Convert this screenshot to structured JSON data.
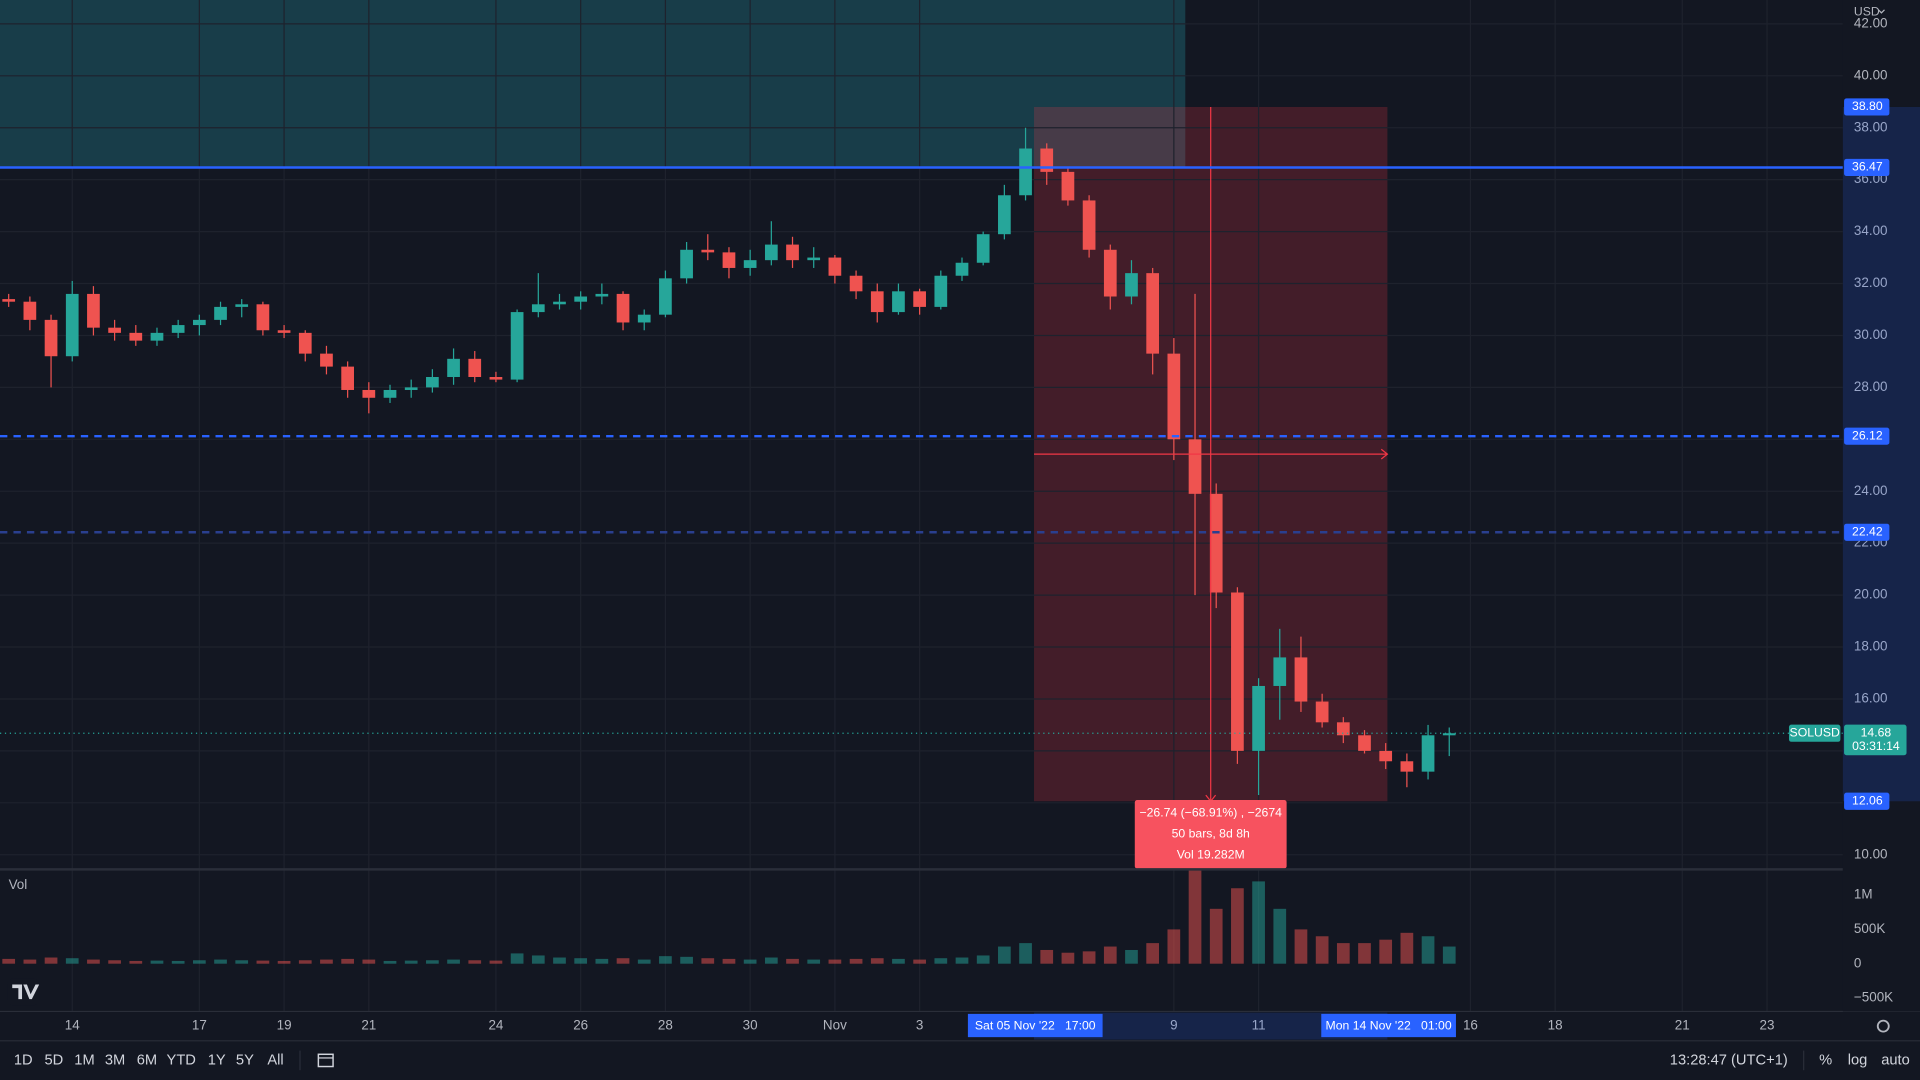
{
  "chart_data": {
    "type": "candlestick",
    "x": [
      -1.5,
      -1,
      -0.5,
      0,
      0.5,
      1,
      1.5,
      2,
      2.5,
      3,
      3.5,
      4,
      4.5,
      5,
      5.5,
      6,
      6.5,
      7,
      7.5,
      8,
      8.5,
      9,
      9.5,
      10,
      10.5,
      11,
      11.5,
      12,
      12.5,
      13,
      13.5,
      14,
      14.5,
      15,
      15.5,
      16,
      16.5,
      17,
      17.5,
      18,
      18.5,
      19,
      19.5,
      20,
      20.5,
      21,
      21.5,
      22,
      22.5,
      23,
      23.5,
      24,
      24.5,
      25,
      25.5,
      26,
      26.5,
      27,
      27.5,
      28,
      28.5,
      29,
      29.5,
      30,
      30.5,
      31,
      31.5,
      32,
      32.5
    ],
    "open": [
      31.4,
      31.3,
      30.6,
      29.2,
      31.6,
      30.3,
      30.1,
      29.8,
      30.1,
      30.4,
      30.6,
      31.1,
      31.2,
      30.2,
      30.1,
      29.3,
      28.8,
      27.9,
      27.6,
      27.9,
      28.0,
      28.4,
      29.1,
      28.4,
      28.3,
      30.9,
      31.2,
      31.3,
      31.5,
      31.6,
      30.5,
      30.8,
      32.2,
      33.3,
      33.2,
      32.6,
      32.9,
      33.5,
      32.9,
      33.0,
      32.3,
      31.7,
      30.9,
      31.7,
      31.1,
      32.3,
      32.8,
      33.9,
      35.4,
      37.2,
      36.3,
      35.2,
      33.3,
      31.5,
      32.4,
      29.3,
      26.0,
      23.9,
      20.1,
      14.0,
      16.5,
      17.6,
      15.9,
      15.1,
      14.6,
      14.0,
      13.6,
      13.2,
      14.6
    ],
    "high": [
      31.6,
      31.5,
      30.8,
      32.1,
      31.9,
      30.6,
      30.4,
      30.3,
      30.6,
      30.8,
      31.3,
      31.4,
      31.3,
      30.4,
      30.2,
      29.6,
      29.0,
      28.2,
      28.1,
      28.3,
      28.7,
      29.5,
      29.4,
      28.6,
      31.0,
      32.4,
      31.6,
      31.7,
      32.0,
      31.7,
      31.0,
      32.5,
      33.6,
      33.9,
      33.4,
      33.3,
      34.4,
      33.8,
      33.4,
      33.1,
      32.5,
      32.0,
      32.0,
      31.8,
      32.5,
      33.0,
      34.0,
      35.8,
      38.0,
      37.4,
      36.5,
      35.4,
      33.5,
      32.9,
      32.6,
      29.9,
      31.6,
      24.3,
      20.3,
      16.8,
      18.7,
      18.4,
      16.2,
      15.3,
      14.8,
      14.3,
      13.9,
      15.0,
      14.9
    ],
    "low": [
      31.1,
      30.2,
      28.0,
      29.0,
      30.0,
      29.8,
      29.6,
      29.6,
      29.9,
      30.0,
      30.4,
      30.7,
      30.0,
      29.9,
      29.0,
      28.5,
      27.6,
      27.0,
      27.4,
      27.6,
      27.8,
      28.1,
      28.2,
      28.2,
      28.2,
      30.7,
      31.0,
      31.0,
      31.2,
      30.2,
      30.2,
      30.7,
      32.0,
      32.9,
      32.2,
      32.3,
      32.7,
      32.6,
      32.6,
      32.0,
      31.4,
      30.5,
      30.8,
      30.8,
      31.0,
      32.1,
      32.7,
      33.7,
      35.2,
      35.8,
      35.0,
      33.0,
      31.0,
      31.2,
      28.5,
      25.2,
      20.0,
      19.5,
      13.5,
      12.3,
      15.2,
      15.5,
      14.9,
      14.3,
      13.9,
      13.3,
      12.6,
      12.9,
      13.8
    ],
    "close": [
      31.3,
      30.6,
      29.2,
      31.6,
      30.3,
      30.1,
      29.8,
      30.1,
      30.4,
      30.6,
      31.1,
      31.2,
      30.2,
      30.1,
      29.3,
      28.8,
      27.9,
      27.6,
      27.9,
      28.0,
      28.4,
      29.1,
      28.4,
      28.3,
      30.9,
      31.2,
      31.3,
      31.5,
      31.6,
      30.5,
      30.8,
      32.2,
      33.3,
      33.2,
      32.6,
      32.9,
      33.5,
      32.9,
      33.0,
      32.3,
      31.7,
      30.9,
      31.7,
      31.1,
      32.3,
      32.8,
      33.9,
      35.4,
      37.2,
      36.3,
      35.2,
      33.3,
      31.5,
      32.4,
      29.3,
      26.0,
      23.9,
      20.1,
      14.0,
      16.5,
      17.6,
      15.9,
      15.1,
      14.6,
      14.0,
      13.6,
      13.2,
      14.6,
      14.68
    ],
    "volume": [
      70000,
      60000,
      90000,
      80000,
      60000,
      50000,
      40000,
      45000,
      40000,
      50000,
      60000,
      50000,
      45000,
      40000,
      50000,
      60000,
      70000,
      60000,
      40000,
      45000,
      50000,
      60000,
      50000,
      45000,
      150000,
      120000,
      90000,
      80000,
      70000,
      80000,
      60000,
      110000,
      100000,
      80000,
      70000,
      60000,
      90000,
      70000,
      60000,
      60000,
      70000,
      80000,
      70000,
      60000,
      80000,
      90000,
      120000,
      250000,
      300000,
      200000,
      160000,
      180000,
      250000,
      200000,
      300000,
      500000,
      1400000,
      800000,
      1100000,
      1200000,
      800000,
      500000,
      400000,
      300000,
      300000,
      350000,
      450000,
      400000,
      250000
    ],
    "up_color": "#26a69a",
    "down_color": "#ef5350",
    "xlim": [
      -1.705,
      41.79
    ],
    "xticks": [
      {
        "value": 0,
        "label": "14"
      },
      {
        "value": 3,
        "label": "17"
      },
      {
        "value": 5,
        "label": "19"
      },
      {
        "value": 7,
        "label": "21"
      },
      {
        "value": 10,
        "label": "24"
      },
      {
        "value": 12,
        "label": "26"
      },
      {
        "value": 14,
        "label": "28"
      },
      {
        "value": 16,
        "label": "30"
      },
      {
        "value": 18,
        "label": "Nov"
      },
      {
        "value": 20,
        "label": "3"
      },
      {
        "value": 26,
        "label": "9"
      },
      {
        "value": 28,
        "label": "11"
      },
      {
        "value": 33,
        "label": "16"
      },
      {
        "value": 35,
        "label": "18"
      },
      {
        "value": 38,
        "label": "21"
      },
      {
        "value": 40,
        "label": "23"
      }
    ],
    "ylim": [
      9.53,
      42.92
    ],
    "yticks": [
      {
        "value": 10,
        "label": "10.00"
      },
      {
        "value": 12,
        "label": "12.00"
      },
      {
        "value": 14,
        "label": "14.00"
      },
      {
        "value": 16,
        "label": "16.00"
      },
      {
        "value": 18,
        "label": "18.00"
      },
      {
        "value": 20,
        "label": "20.00"
      },
      {
        "value": 22,
        "label": "22.00"
      },
      {
        "value": 24,
        "label": "24.00"
      },
      {
        "value": 26,
        "label": "26.00"
      },
      {
        "value": 28,
        "label": "28.00"
      },
      {
        "value": 30,
        "label": "30.00"
      },
      {
        "value": 32,
        "label": "32.00"
      },
      {
        "value": 34,
        "label": "34.00"
      },
      {
        "value": 36,
        "label": "36.00"
      },
      {
        "value": 38,
        "label": "38.00"
      },
      {
        "value": 40,
        "label": "40.00"
      },
      {
        "value": 42,
        "label": "42.00"
      }
    ],
    "volume_label": "Vol",
    "volume_ylim": [
      -696000,
      1375000
    ],
    "volume_ticks": [
      {
        "value": 1000000,
        "label": "1M"
      },
      {
        "value": 500000,
        "label": "500K"
      },
      0,
      {
        "value": -500000,
        "label": "−500K"
      }
    ],
    "grid": true,
    "levels": [
      {
        "value": 36.47,
        "label": "36.47",
        "color": "#2962ff",
        "dashed": false
      },
      {
        "value": 26.12,
        "label": "26.12",
        "color": "#2962ff",
        "dashed": true
      },
      {
        "value": 22.42,
        "label": "22.42",
        "color": "#2a3f8f",
        "dashed": true
      }
    ],
    "zone": {
      "x_end": 26.27,
      "from": 36.47,
      "color": "#1b4b57"
    },
    "measure": {
      "x": [
        22.7,
        31.04
      ],
      "top": {
        "value": 38.8,
        "label": "38.80"
      },
      "bottom": {
        "value": 12.06,
        "label": "12.06"
      },
      "color": "#f23645",
      "label": [
        "−26.74 (−68.91%) , −2674",
        "50 bars, 8d 8h",
        "Vol 19.282M"
      ],
      "x_labels": [
        "Sat 05 Nov '22   17:00",
        "Mon 14 Nov '22   01:00"
      ]
    },
    "last": {
      "symbol": "SOLUSD",
      "price": {
        "value": 14.68,
        "label": "14.68"
      },
      "countdown": "03:31:14"
    }
  },
  "ui": {
    "currency": "USD",
    "ranges": [
      "1D",
      "5D",
      "1M",
      "3M",
      "6M",
      "YTD",
      "1Y",
      "5Y",
      "All"
    ],
    "clock": "13:28:47 (UTC+1)",
    "options": [
      "%",
      "log",
      "auto"
    ]
  }
}
